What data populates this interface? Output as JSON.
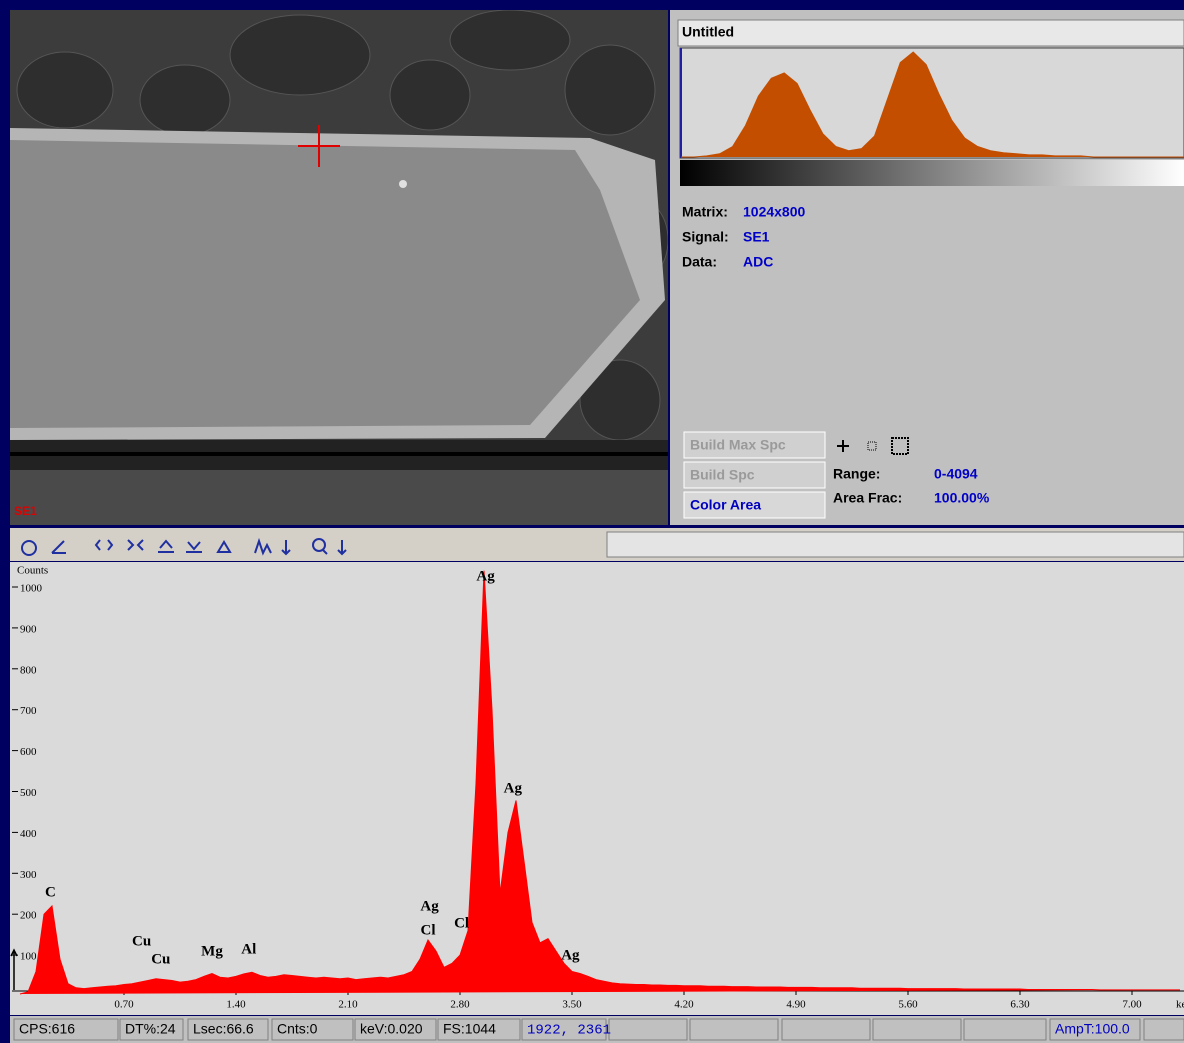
{
  "image": {
    "overlay_label": "SE1"
  },
  "panel": {
    "title": "Untitled",
    "histogram": {
      "color": "#c44e00",
      "ylim": [
        0,
        100
      ],
      "values": [
        0,
        0,
        1,
        3,
        10,
        30,
        58,
        75,
        80,
        70,
        45,
        22,
        10,
        6,
        8,
        20,
        55,
        90,
        100,
        88,
        60,
        35,
        18,
        10,
        6,
        4,
        3,
        2,
        2,
        1,
        1,
        1,
        0,
        0,
        0,
        0,
        0,
        0,
        0,
        0
      ]
    },
    "info": [
      {
        "label": "Matrix:",
        "value": "1024x800"
      },
      {
        "label": "Signal:",
        "value": "SE1"
      },
      {
        "label": "Data:",
        "value": "ADC"
      }
    ],
    "buttons": [
      "Build Max Spc",
      "Build Spc",
      "Color Area"
    ],
    "range": {
      "label": "Range:",
      "value": "0-4094"
    },
    "area_frac": {
      "label": "Area Frac:",
      "value": "100.00%"
    }
  },
  "spectrum": {
    "type": "area",
    "y_label": "Counts",
    "x_label": "keV",
    "color": "#ff0000",
    "xlim": [
      0,
      7.325
    ],
    "ylim": [
      0,
      1050
    ],
    "xticks": [
      {
        "value": 0.7,
        "label": "0.70"
      },
      {
        "value": 1.4,
        "label": "1.40"
      },
      {
        "value": 2.1,
        "label": "2.10"
      },
      {
        "value": 2.8,
        "label": "2.80"
      },
      {
        "value": 3.5,
        "label": "3.50"
      },
      {
        "value": 4.2,
        "label": "4.20"
      },
      {
        "value": 4.9,
        "label": "4.90"
      },
      {
        "value": 5.6,
        "label": "5.60"
      },
      {
        "value": 6.3,
        "label": "6.30"
      },
      {
        "value": 7,
        "label": "7.00"
      }
    ],
    "yticks": [
      100,
      200,
      300,
      400,
      500,
      600,
      700,
      800,
      900,
      1000
    ],
    "x": [
      0.05,
      0.1,
      0.15,
      0.2,
      0.25,
      0.3,
      0.35,
      0.4,
      0.45,
      0.5,
      0.55,
      0.6,
      0.65,
      0.7,
      0.75,
      0.8,
      0.85,
      0.9,
      0.95,
      1,
      1.05,
      1.1,
      1.15,
      1.2,
      1.25,
      1.3,
      1.35,
      1.4,
      1.45,
      1.5,
      1.55,
      1.6,
      1.65,
      1.7,
      1.75,
      1.8,
      1.85,
      1.9,
      1.95,
      2,
      2.05,
      2.1,
      2.15,
      2.2,
      2.25,
      2.3,
      2.35,
      2.4,
      2.45,
      2.5,
      2.55,
      2.6,
      2.65,
      2.7,
      2.75,
      2.8,
      2.85,
      2.9,
      2.95,
      3,
      3.05,
      3.1,
      3.15,
      3.2,
      3.25,
      3.3,
      3.35,
      3.4,
      3.45,
      3.5,
      3.55,
      3.6,
      3.65,
      3.7,
      3.75,
      3.8,
      3.85,
      3.9,
      3.95,
      4,
      4.05,
      4.1,
      4.15,
      4.2,
      4.25,
      4.3,
      4.35,
      4.4,
      4.45,
      4.5,
      4.55,
      4.6,
      4.65,
      4.7,
      4.75,
      4.8,
      4.85,
      4.9,
      4.95,
      5,
      5.05,
      5.1,
      5.15,
      5.2,
      5.25,
      5.3,
      5.35,
      5.4,
      5.45,
      5.5,
      5.55,
      5.6,
      5.65,
      5.7,
      5.75,
      5.8,
      5.85,
      5.9,
      5.95,
      6,
      6.05,
      6.1,
      6.15,
      6.2,
      6.25,
      6.3,
      6.35,
      6.4,
      6.45,
      6.5,
      6.55,
      6.6,
      6.65,
      6.7,
      6.75,
      6.8,
      6.85,
      6.9,
      6.95,
      7,
      7.05,
      7.1,
      7.15,
      7.2,
      7.25,
      7.3
    ],
    "values": [
      5,
      10,
      60,
      200,
      220,
      90,
      30,
      20,
      18,
      20,
      22,
      24,
      25,
      28,
      30,
      34,
      38,
      42,
      40,
      38,
      34,
      36,
      40,
      48,
      55,
      46,
      44,
      48,
      54,
      58,
      50,
      46,
      48,
      52,
      50,
      48,
      46,
      44,
      46,
      44,
      42,
      44,
      40,
      42,
      44,
      46,
      44,
      48,
      52,
      60,
      90,
      137,
      110,
      70,
      80,
      100,
      160,
      520,
      1040,
      700,
      250,
      400,
      478,
      330,
      180,
      130,
      140,
      110,
      80,
      60,
      55,
      48,
      40,
      36,
      32,
      30,
      29,
      28,
      28,
      27,
      27,
      26,
      26,
      25,
      25,
      25,
      24,
      24,
      24,
      23,
      23,
      23,
      22,
      22,
      22,
      22,
      21,
      21,
      21,
      21,
      20,
      20,
      20,
      20,
      20,
      19,
      19,
      19,
      19,
      19,
      19,
      18,
      18,
      18,
      18,
      18,
      18,
      18,
      17,
      17,
      17,
      17,
      17,
      17,
      17,
      17,
      16,
      16,
      16,
      16,
      16,
      16,
      16,
      16,
      16,
      15,
      15,
      15,
      15,
      15,
      15,
      15,
      15,
      15,
      15,
      15
    ],
    "annotations": [
      {
        "text": "C",
        "x": 0.24,
        "y": 252
      },
      {
        "text": "Cu",
        "x": 0.81,
        "y": 132
      },
      {
        "text": "Cu",
        "x": 0.93,
        "y": 88
      },
      {
        "text": "Mg",
        "x": 1.25,
        "y": 108
      },
      {
        "text": "Al",
        "x": 1.48,
        "y": 112
      },
      {
        "text": "Ag",
        "x": 2.61,
        "y": 218
      },
      {
        "text": "Cl",
        "x": 2.6,
        "y": 159
      },
      {
        "text": "Cl",
        "x": 2.81,
        "y": 176
      },
      {
        "text": "Ag",
        "x": 2.96,
        "y": 1024
      },
      {
        "text": "Ag",
        "x": 3.13,
        "y": 506
      },
      {
        "text": "Ag",
        "x": 3.49,
        "y": 98
      }
    ]
  },
  "status": [
    "CPS:616",
    "DT%:24",
    "Lsec:66.6",
    "Cnts:0",
    "keV:0.020",
    "FS:1044",
    "1922, 2361",
    "AmpT:100.0"
  ]
}
